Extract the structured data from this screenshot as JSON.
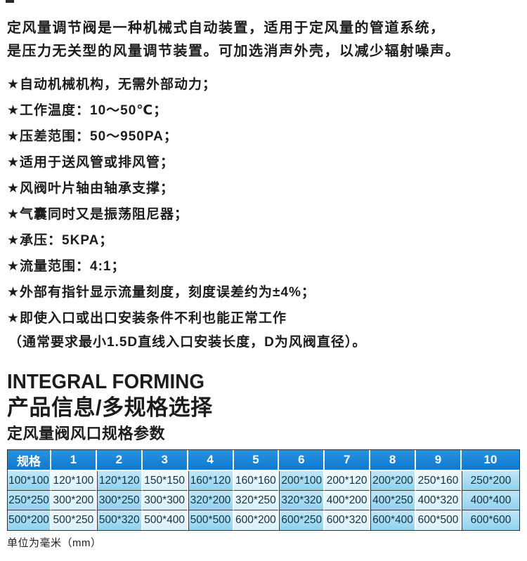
{
  "page": {
    "intro_lines": [
      "定风量调节阀是一种机械式自动装置，适用于定风量的管道系统，",
      "是压力无关型的风量调节装置。可加选消声外壳，以减少辐射噪声。"
    ],
    "features": [
      {
        "bullet": "★",
        "text": "自动机械机构，无需外部动力；"
      },
      {
        "bullet": "★",
        "text": "工作温度：10～50℃；"
      },
      {
        "bullet": "★",
        "text": "压差范围：50～950PA；"
      },
      {
        "bullet": "★",
        "text": "适用于送风管或排风管；"
      },
      {
        "bullet": "★",
        "text": "风阀叶片轴由轴承支撑；"
      },
      {
        "bullet": "★",
        "text": "气囊同时又是振荡阻尼器；"
      },
      {
        "bullet": "★",
        "text": "承压：5KPA；"
      },
      {
        "bullet": "★",
        "text": "流量范围：4:1；"
      },
      {
        "bullet": "★",
        "text": "外部有指针显示流量刻度，刻度误差约为±4%；"
      },
      {
        "bullet": "★",
        "text": "即使入口或出口安装条件不利也能正常工作"
      },
      {
        "bullet": "",
        "text": "（通常要求最小1.5D直线入口安装长度，D为风阀直径）。"
      }
    ],
    "headings": {
      "en": "INTEGRAL FORMING",
      "cn_main": "产品信息/多规格选择",
      "cn_sub": "定风量阀风口规格参数"
    },
    "spec_table": {
      "headers": [
        "规格",
        "1",
        "2",
        "3",
        "4",
        "5",
        "6",
        "7",
        "8",
        "9",
        "10"
      ],
      "rows": [
        [
          "100*100",
          "120*100",
          "120*120",
          "150*150",
          "160*120",
          "160*160",
          "200*100",
          "200*120",
          "200*200",
          "250*160",
          "250*200"
        ],
        [
          "250*250",
          "300*200",
          "300*250",
          "300*300",
          "320*200",
          "320*250",
          "320*320",
          "400*200",
          "400*250",
          "400*320",
          "400*400"
        ],
        [
          "500*200",
          "500*250",
          "500*320",
          "500*400",
          "500*500",
          "600*200",
          "600*250",
          "600*320",
          "600*400",
          "600*500",
          "600*600"
        ]
      ]
    },
    "unit_note": "单位为毫米（mm）",
    "colors": {
      "header_blue": "#0d7ad0",
      "header_blue_light": "#2a92de",
      "cell_medium_top": "#c0e7f8",
      "cell_medium_bottom": "#8fd2ef",
      "cell_light_top": "#f2fbfe",
      "cell_light_bottom": "#d7f0fa"
    }
  }
}
